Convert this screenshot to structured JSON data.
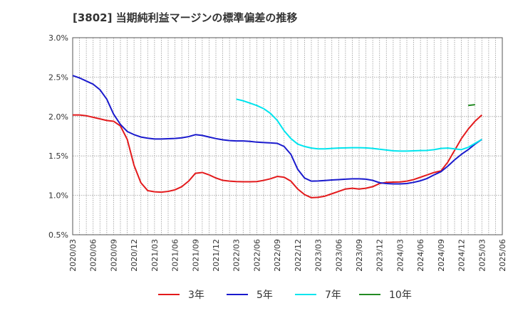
{
  "chart_data": {
    "type": "line",
    "title": "[3802]  当期純利益マージンの標準偏差の推移",
    "xlabel": "",
    "ylabel": "",
    "ylim": [
      0.5,
      3.0
    ],
    "yticks": [
      "0.5%",
      "1.0%",
      "1.5%",
      "2.0%",
      "2.5%",
      "3.0%"
    ],
    "ytick_values": [
      0.5,
      1.0,
      1.5,
      2.0,
      2.5,
      3.0
    ],
    "xticks": [
      "2020/03",
      "2020/06",
      "2020/09",
      "2020/12",
      "2021/03",
      "2021/06",
      "2021/09",
      "2021/12",
      "2022/03",
      "2022/06",
      "2022/09",
      "2022/12",
      "2023/03",
      "2023/06",
      "2023/09",
      "2023/12",
      "2024/03",
      "2024/06",
      "2024/09",
      "2024/12",
      "2025/03",
      "2025/06"
    ],
    "grid": true,
    "legend_position": "bottom",
    "series": [
      {
        "name": "3年",
        "color": "#e31a1c",
        "start": "2020/03",
        "values": [
          2.02,
          2.02,
          2.01,
          1.99,
          1.97,
          1.95,
          1.94,
          1.88,
          1.71,
          1.38,
          1.16,
          1.06,
          1.045,
          1.04,
          1.05,
          1.07,
          1.11,
          1.18,
          1.28,
          1.29,
          1.26,
          1.22,
          1.19,
          1.18,
          1.175,
          1.172,
          1.172,
          1.175,
          1.19,
          1.21,
          1.24,
          1.23,
          1.18,
          1.08,
          1.01,
          0.97,
          0.975,
          0.99,
          1.02,
          1.05,
          1.08,
          1.09,
          1.08,
          1.09,
          1.11,
          1.15,
          1.165,
          1.168,
          1.17,
          1.18,
          1.2,
          1.23,
          1.26,
          1.29,
          1.31,
          1.42,
          1.57,
          1.72,
          1.84,
          1.94,
          2.02
        ]
      },
      {
        "name": "5年",
        "color": "#1a1acd",
        "start": "2020/03",
        "values": [
          2.52,
          2.49,
          2.45,
          2.41,
          2.34,
          2.22,
          2.03,
          1.9,
          1.81,
          1.77,
          1.74,
          1.725,
          1.715,
          1.715,
          1.718,
          1.722,
          1.73,
          1.745,
          1.77,
          1.76,
          1.74,
          1.72,
          1.705,
          1.695,
          1.69,
          1.69,
          1.685,
          1.675,
          1.67,
          1.665,
          1.66,
          1.62,
          1.52,
          1.33,
          1.22,
          1.18,
          1.182,
          1.188,
          1.195,
          1.2,
          1.205,
          1.21,
          1.21,
          1.205,
          1.19,
          1.16,
          1.15,
          1.145,
          1.145,
          1.15,
          1.165,
          1.185,
          1.215,
          1.26,
          1.3,
          1.37,
          1.45,
          1.52,
          1.58,
          1.65,
          1.71
        ]
      },
      {
        "name": "7年",
        "color": "#00e5ee",
        "start": "2022/03",
        "values": [
          2.22,
          2.2,
          2.17,
          2.14,
          2.1,
          2.04,
          1.95,
          1.82,
          1.72,
          1.65,
          1.62,
          1.6,
          1.59,
          1.59,
          1.595,
          1.6,
          1.602,
          1.605,
          1.605,
          1.602,
          1.595,
          1.585,
          1.575,
          1.565,
          1.562,
          1.562,
          1.565,
          1.568,
          1.57,
          1.58,
          1.595,
          1.6,
          1.59,
          1.58,
          1.61,
          1.66,
          1.71
        ]
      },
      {
        "name": "10年",
        "color": "#238b23",
        "start": "2025/01",
        "values": [
          2.14,
          2.15
        ]
      }
    ]
  }
}
